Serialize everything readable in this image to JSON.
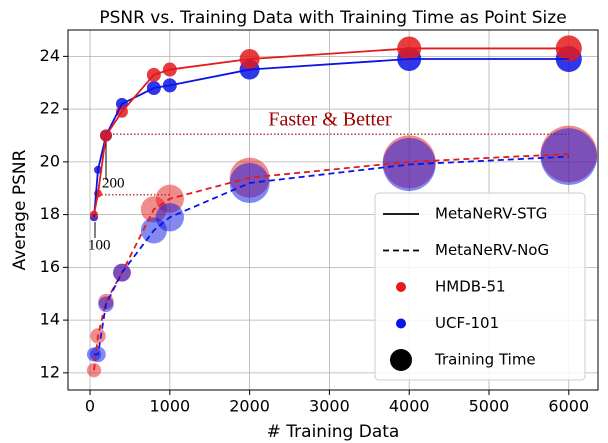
{
  "chart_data": {
    "type": "scatter-line",
    "title": "PSNR vs. Training Data with Training Time as Point Size",
    "x_label": "# Training Data",
    "y_label": "Average PSNR",
    "x": [
      50,
      100,
      200,
      400,
      800,
      1000,
      2000,
      4000,
      6000
    ],
    "series": [
      {
        "line": "dashed",
        "color": "#e41a1c",
        "values": [
          12.1,
          13.4,
          14.7,
          15.8,
          18.2,
          18.6,
          19.4,
          20.0,
          20.3
        ],
        "sizes": [
          50,
          60,
          60,
          80,
          170,
          200,
          400,
          700,
          800
        ]
      },
      {
        "line": "dashed",
        "color": "#0a14e6",
        "values": [
          12.7,
          12.7,
          14.6,
          15.8,
          17.4,
          17.9,
          19.2,
          19.9,
          20.2
        ],
        "sizes": [
          50,
          60,
          60,
          80,
          170,
          200,
          400,
          700,
          800
        ]
      },
      {
        "line": "solid",
        "color": "#0a14e6",
        "values": [
          17.9,
          19.7,
          21.0,
          22.2,
          22.8,
          22.9,
          23.5,
          23.9,
          23.9
        ],
        "sizes": [
          16,
          16,
          36,
          36,
          49,
          49,
          100,
          144,
          170
        ]
      },
      {
        "line": "solid",
        "color": "#e41a1c",
        "values": [
          18.0,
          18.8,
          21.0,
          21.9,
          23.3,
          23.5,
          23.9,
          24.3,
          24.3
        ],
        "sizes": [
          16,
          16,
          36,
          36,
          49,
          49,
          100,
          144,
          170
        ]
      }
    ],
    "xlim": [
      -276,
      6366
    ],
    "ylim": [
      11.35,
      25.0
    ],
    "xticks": [
      0,
      1000,
      2000,
      3000,
      4000,
      5000,
      6000
    ],
    "yticks": [
      12,
      14,
      16,
      18,
      20,
      22,
      24
    ],
    "grid": true,
    "legend_position": "lower right",
    "legend": [
      {
        "label": "MetaNeRV-STG",
        "line": "solid"
      },
      {
        "label": "MetaNeRV-NoG",
        "line": "dashed"
      },
      {
        "label": "HMDB-51",
        "color": "#e41a1c"
      },
      {
        "label": "UCF-101",
        "color": "#0a14e6"
      },
      {
        "label": "Training Time",
        "color": "#000000"
      }
    ],
    "annotations": [
      {
        "text": "Faster & Better",
        "y": 21.05,
        "x": [
          200,
          6000
        ]
      },
      {
        "text": "200",
        "y": 18.75,
        "x": [
          100,
          1000
        ]
      },
      {
        "text": "100"
      }
    ]
  }
}
